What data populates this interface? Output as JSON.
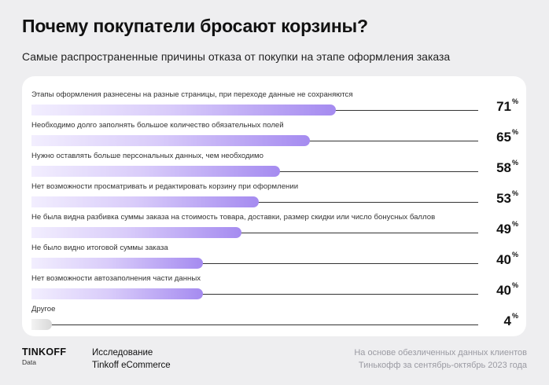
{
  "header": {
    "title": "Почему покупатели бросают корзины?",
    "subtitle": "Самые распространенные причины отказа от покупки на этапе оформления заказа"
  },
  "chart_data": {
    "type": "bar",
    "orientation": "horizontal",
    "unit": "%",
    "xlim": [
      0,
      100
    ],
    "categories": [
      "Этапы оформления разнесены на разные страницы, при переходе данные не сохраняются",
      "Необходимо долго заполнять большое количество обязательных полей",
      "Нужно оставлять больше персональных данных, чем необходимо",
      "Нет возможности просматривать и редактировать корзину при оформлении",
      "Не была видна разбивка суммы заказа на стоимость товара, доставки, размер скидки или число бонусных баллов",
      "Не было видно итоговой суммы заказа",
      "Нет возможности автозаполнения части данных",
      "Другое"
    ],
    "values": [
      71,
      65,
      58,
      53,
      49,
      40,
      40,
      4
    ],
    "colors": {
      "bar_start": "#f2eefe",
      "bar_end": "#a58bf0",
      "other_bar": "#d8d8d8",
      "axis": "#333333"
    }
  },
  "footer": {
    "brand": "TINKOFF",
    "brand_sub": "Data",
    "study_line1": "Исследование",
    "study_line2": "Tinkoff eCommerce",
    "source_line1": "На основе обезличенных данных клиентов",
    "source_line2": "Тинькофф за сентябрь-октябрь 2023 года"
  }
}
